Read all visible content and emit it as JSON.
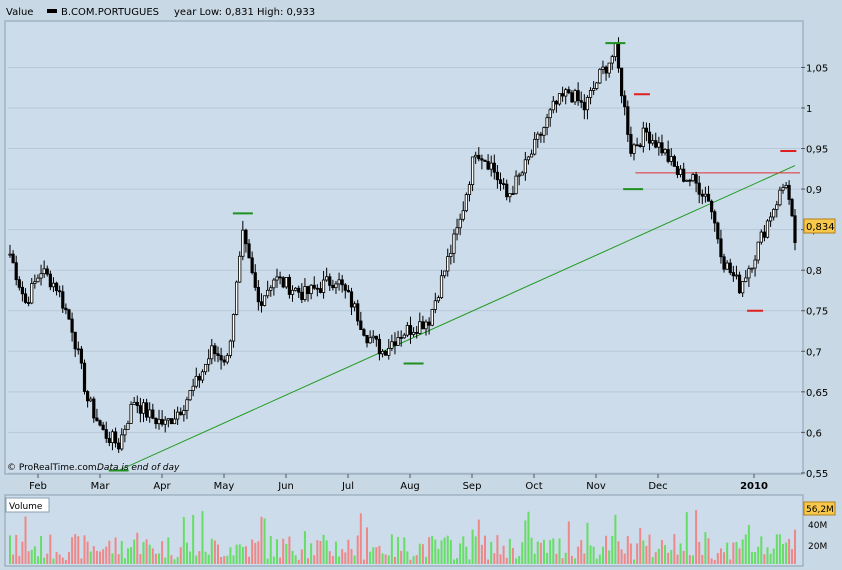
{
  "header": {
    "value_label": "Value",
    "symbol": "B.COM.PORTUGUES",
    "range_text": "year Low: 0,831 High: 0,933"
  },
  "footer": {
    "copyright": "© ProRealTime.com",
    "note": "Data is end of day"
  },
  "last_price": "0,834",
  "volume": {
    "label": "Volume",
    "last_value": "56,2M",
    "ticks": [
      "40M",
      "20M"
    ]
  },
  "colors": {
    "panel_bg": "#cddcea",
    "frame_bg": "#c8d8e4",
    "trendline": "#1f9a1f",
    "resistance": "#e03030",
    "support_marker": "#1f8f1f",
    "resistance_marker": "#e02020",
    "price_box": "#f7c84a",
    "vol_up": "#66dd66",
    "vol_down": "#ee8888"
  },
  "chart_data": {
    "type": "candlestick",
    "x": [
      "Feb",
      "Mar",
      "Apr",
      "May",
      "Jun",
      "Jul",
      "Aug",
      "Sep",
      "Oct",
      "Nov",
      "Dec",
      "2010"
    ],
    "ylim": [
      0.545,
      1.09
    ],
    "y_ticks": [
      "1,05",
      "1",
      "0,95",
      "0,9",
      "0,85",
      "0,8",
      "0,75",
      "0,7",
      "0,65",
      "0,6",
      "0,55"
    ],
    "price_path": [
      [
        "2009-01-19",
        0.82
      ],
      [
        "2009-01-26",
        0.76
      ],
      [
        "2009-02-02",
        0.8
      ],
      [
        "2009-02-09",
        0.78
      ],
      [
        "2009-02-16",
        0.73
      ],
      [
        "2009-02-23",
        0.64
      ],
      [
        "2009-03-02",
        0.6
      ],
      [
        "2009-03-09",
        0.585
      ],
      [
        "2009-03-16",
        0.64
      ],
      [
        "2009-03-23",
        0.62
      ],
      [
        "2009-03-30",
        0.61
      ],
      [
        "2009-04-06",
        0.63
      ],
      [
        "2009-04-13",
        0.66
      ],
      [
        "2009-04-20",
        0.7
      ],
      [
        "2009-04-27",
        0.69
      ],
      [
        "2009-05-04",
        0.84
      ],
      [
        "2009-05-11",
        0.76
      ],
      [
        "2009-05-18",
        0.79
      ],
      [
        "2009-05-25",
        0.78
      ],
      [
        "2009-06-01",
        0.77
      ],
      [
        "2009-06-08",
        0.78
      ],
      [
        "2009-06-15",
        0.79
      ],
      [
        "2009-06-22",
        0.76
      ],
      [
        "2009-06-29",
        0.72
      ],
      [
        "2009-07-06",
        0.7
      ],
      [
        "2009-07-13",
        0.72
      ],
      [
        "2009-07-20",
        0.73
      ],
      [
        "2009-07-27",
        0.74
      ],
      [
        "2009-08-03",
        0.8
      ],
      [
        "2009-08-10",
        0.86
      ],
      [
        "2009-08-17",
        0.95
      ],
      [
        "2009-08-24",
        0.93
      ],
      [
        "2009-08-31",
        0.89
      ],
      [
        "2009-09-07",
        0.92
      ],
      [
        "2009-09-14",
        0.96
      ],
      [
        "2009-09-21",
        1.0
      ],
      [
        "2009-09-28",
        1.02
      ],
      [
        "2009-10-05",
        1.0
      ],
      [
        "2009-10-12",
        1.04
      ],
      [
        "2009-10-19",
        1.07
      ],
      [
        "2009-10-26",
        0.95
      ],
      [
        "2009-11-02",
        0.97
      ],
      [
        "2009-11-09",
        0.95
      ],
      [
        "2009-11-16",
        0.92
      ],
      [
        "2009-11-23",
        0.91
      ],
      [
        "2009-11-30",
        0.89
      ],
      [
        "2009-12-07",
        0.81
      ],
      [
        "2009-12-14",
        0.78
      ],
      [
        "2009-12-21",
        0.82
      ],
      [
        "2009-12-28",
        0.87
      ],
      [
        "2010-01-04",
        0.91
      ],
      [
        "2010-01-08",
        0.834
      ]
    ],
    "last_value": 0.834,
    "annotations": {
      "trendline": [
        [
          "2009-03-09",
          0.553
        ],
        [
          "2010-01-08",
          0.929
        ]
      ],
      "resistance": {
        "value": 0.92,
        "from": "2009-10-28",
        "to": "2010-01-08"
      },
      "support_markers": [
        [
          "2009-03-09",
          0.553
        ],
        [
          "2009-05-04",
          0.87
        ],
        [
          "2009-07-20",
          0.685
        ],
        [
          "2009-10-19",
          1.08
        ],
        [
          "2009-10-27",
          0.9
        ]
      ],
      "resistance_markers": [
        [
          "2009-10-31",
          1.017
        ],
        [
          "2009-12-21",
          0.75
        ],
        [
          "2010-01-05",
          0.947
        ]
      ]
    }
  }
}
